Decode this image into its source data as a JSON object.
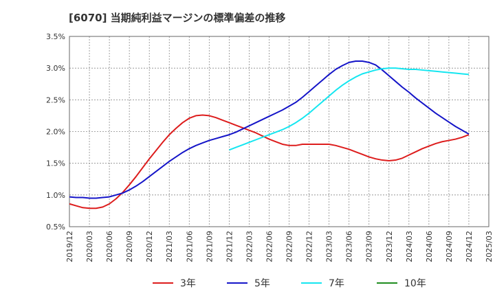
{
  "chart_data": {
    "type": "line",
    "title": "[6070]  当期純利益マージンの標準偏差の推移",
    "xlabel": "",
    "ylabel": "",
    "ylim": [
      0.005,
      0.035
    ],
    "y_ticks": [
      0.005,
      0.01,
      0.015,
      0.02,
      0.025,
      0.03,
      0.035
    ],
    "y_tick_labels": [
      "0.5%",
      "1.0%",
      "1.5%",
      "2.0%",
      "2.5%",
      "3.0%",
      "3.5%"
    ],
    "x_range": [
      "2019-12",
      "2025-03"
    ],
    "x_tick_labels": [
      "2019/12",
      "2020/03",
      "2020/06",
      "2020/09",
      "2020/12",
      "2021/03",
      "2021/06",
      "2021/09",
      "2021/12",
      "2022/03",
      "2022/06",
      "2022/09",
      "2022/12",
      "2023/03",
      "2023/06",
      "2023/09",
      "2023/12",
      "2024/03",
      "2024/06",
      "2024/09",
      "2024/12",
      "2025/03"
    ],
    "grid": true,
    "legend_position": "bottom",
    "series": [
      {
        "name": "3年",
        "color": "#dd1c1c",
        "x": [
          "2019-12",
          "2020-01",
          "2020-02",
          "2020-03",
          "2020-04",
          "2020-05",
          "2020-06",
          "2020-07",
          "2020-08",
          "2020-09",
          "2020-10",
          "2020-11",
          "2020-12",
          "2021-01",
          "2021-02",
          "2021-03",
          "2021-04",
          "2021-05",
          "2021-06",
          "2021-07",
          "2021-08",
          "2021-09",
          "2021-10",
          "2021-11",
          "2021-12",
          "2022-01",
          "2022-02",
          "2022-03",
          "2022-04",
          "2022-05",
          "2022-06",
          "2022-07",
          "2022-08",
          "2022-09",
          "2022-10",
          "2022-11",
          "2022-12",
          "2023-01",
          "2023-02",
          "2023-03",
          "2023-04",
          "2023-05",
          "2023-06",
          "2023-07",
          "2023-08",
          "2023-09",
          "2023-10",
          "2023-11",
          "2023-12",
          "2024-01",
          "2024-02",
          "2024-03",
          "2024-04",
          "2024-05",
          "2024-06",
          "2024-07",
          "2024-08",
          "2024-09",
          "2024-10",
          "2024-11",
          "2024-12"
        ],
        "values": [
          0.0086,
          0.0083,
          0.008,
          0.0079,
          0.0079,
          0.0081,
          0.0086,
          0.0094,
          0.0104,
          0.0116,
          0.0129,
          0.0143,
          0.0157,
          0.017,
          0.0183,
          0.0195,
          0.0205,
          0.0214,
          0.0221,
          0.0225,
          0.0226,
          0.0225,
          0.0222,
          0.0218,
          0.0214,
          0.021,
          0.0206,
          0.0202,
          0.0198,
          0.0193,
          0.0188,
          0.0184,
          0.018,
          0.0178,
          0.0178,
          0.018,
          0.018,
          0.018,
          0.018,
          0.018,
          0.0178,
          0.0175,
          0.0172,
          0.0168,
          0.0164,
          0.016,
          0.0157,
          0.0155,
          0.0154,
          0.0155,
          0.0158,
          0.0163,
          0.0168,
          0.0173,
          0.0177,
          0.0181,
          0.0184,
          0.0186,
          0.0188,
          0.0191,
          0.0195
        ]
      },
      {
        "name": "5年",
        "color": "#1414c8",
        "x": [
          "2019-12",
          "2020-01",
          "2020-02",
          "2020-03",
          "2020-04",
          "2020-05",
          "2020-06",
          "2020-07",
          "2020-08",
          "2020-09",
          "2020-10",
          "2020-11",
          "2020-12",
          "2021-01",
          "2021-02",
          "2021-03",
          "2021-04",
          "2021-05",
          "2021-06",
          "2021-07",
          "2021-08",
          "2021-09",
          "2021-10",
          "2021-11",
          "2021-12",
          "2022-01",
          "2022-02",
          "2022-03",
          "2022-04",
          "2022-05",
          "2022-06",
          "2022-07",
          "2022-08",
          "2022-09",
          "2022-10",
          "2022-11",
          "2022-12",
          "2023-01",
          "2023-02",
          "2023-03",
          "2023-04",
          "2023-05",
          "2023-06",
          "2023-07",
          "2023-08",
          "2023-09",
          "2023-10",
          "2023-11",
          "2023-12",
          "2024-01",
          "2024-02",
          "2024-03",
          "2024-04",
          "2024-05",
          "2024-06",
          "2024-07",
          "2024-08",
          "2024-09",
          "2024-10",
          "2024-11",
          "2024-12"
        ],
        "values": [
          0.0097,
          0.0096,
          0.0096,
          0.0095,
          0.0095,
          0.0096,
          0.0097,
          0.01,
          0.0103,
          0.0108,
          0.0114,
          0.0121,
          0.0129,
          0.0137,
          0.0145,
          0.0153,
          0.016,
          0.0167,
          0.0173,
          0.0178,
          0.0182,
          0.0186,
          0.0189,
          0.0192,
          0.0195,
          0.0199,
          0.0204,
          0.0209,
          0.0214,
          0.0219,
          0.0224,
          0.0229,
          0.0234,
          0.024,
          0.0246,
          0.0254,
          0.0263,
          0.0272,
          0.0281,
          0.029,
          0.0298,
          0.0304,
          0.0309,
          0.0311,
          0.0311,
          0.0309,
          0.0305,
          0.0297,
          0.0288,
          0.0279,
          0.027,
          0.0262,
          0.0253,
          0.0245,
          0.0237,
          0.0229,
          0.0222,
          0.0215,
          0.0208,
          0.0202,
          0.0196
        ]
      },
      {
        "name": "7年",
        "color": "#14e6f0",
        "x": [
          "2021-12",
          "2022-01",
          "2022-02",
          "2022-03",
          "2022-04",
          "2022-05",
          "2022-06",
          "2022-07",
          "2022-08",
          "2022-09",
          "2022-10",
          "2022-11",
          "2022-12",
          "2023-01",
          "2023-02",
          "2023-03",
          "2023-04",
          "2023-05",
          "2023-06",
          "2023-07",
          "2023-08",
          "2023-09",
          "2023-10",
          "2023-11",
          "2023-12",
          "2024-01",
          "2024-02",
          "2024-03",
          "2024-04",
          "2024-05",
          "2024-06",
          "2024-07",
          "2024-08",
          "2024-09",
          "2024-10",
          "2024-11",
          "2024-12"
        ],
        "values": [
          0.0171,
          0.0175,
          0.0179,
          0.0183,
          0.0187,
          0.0191,
          0.0195,
          0.0199,
          0.0203,
          0.0208,
          0.0214,
          0.0221,
          0.0229,
          0.0238,
          0.0247,
          0.0256,
          0.0265,
          0.0273,
          0.028,
          0.0286,
          0.0291,
          0.0294,
          0.0297,
          0.0299,
          0.03,
          0.03,
          0.0299,
          0.0298,
          0.0298,
          0.0297,
          0.0296,
          0.0295,
          0.0294,
          0.0293,
          0.0292,
          0.0291,
          0.029
        ]
      },
      {
        "name": "10年",
        "color": "#1e8c1e",
        "x": [],
        "values": []
      }
    ]
  }
}
